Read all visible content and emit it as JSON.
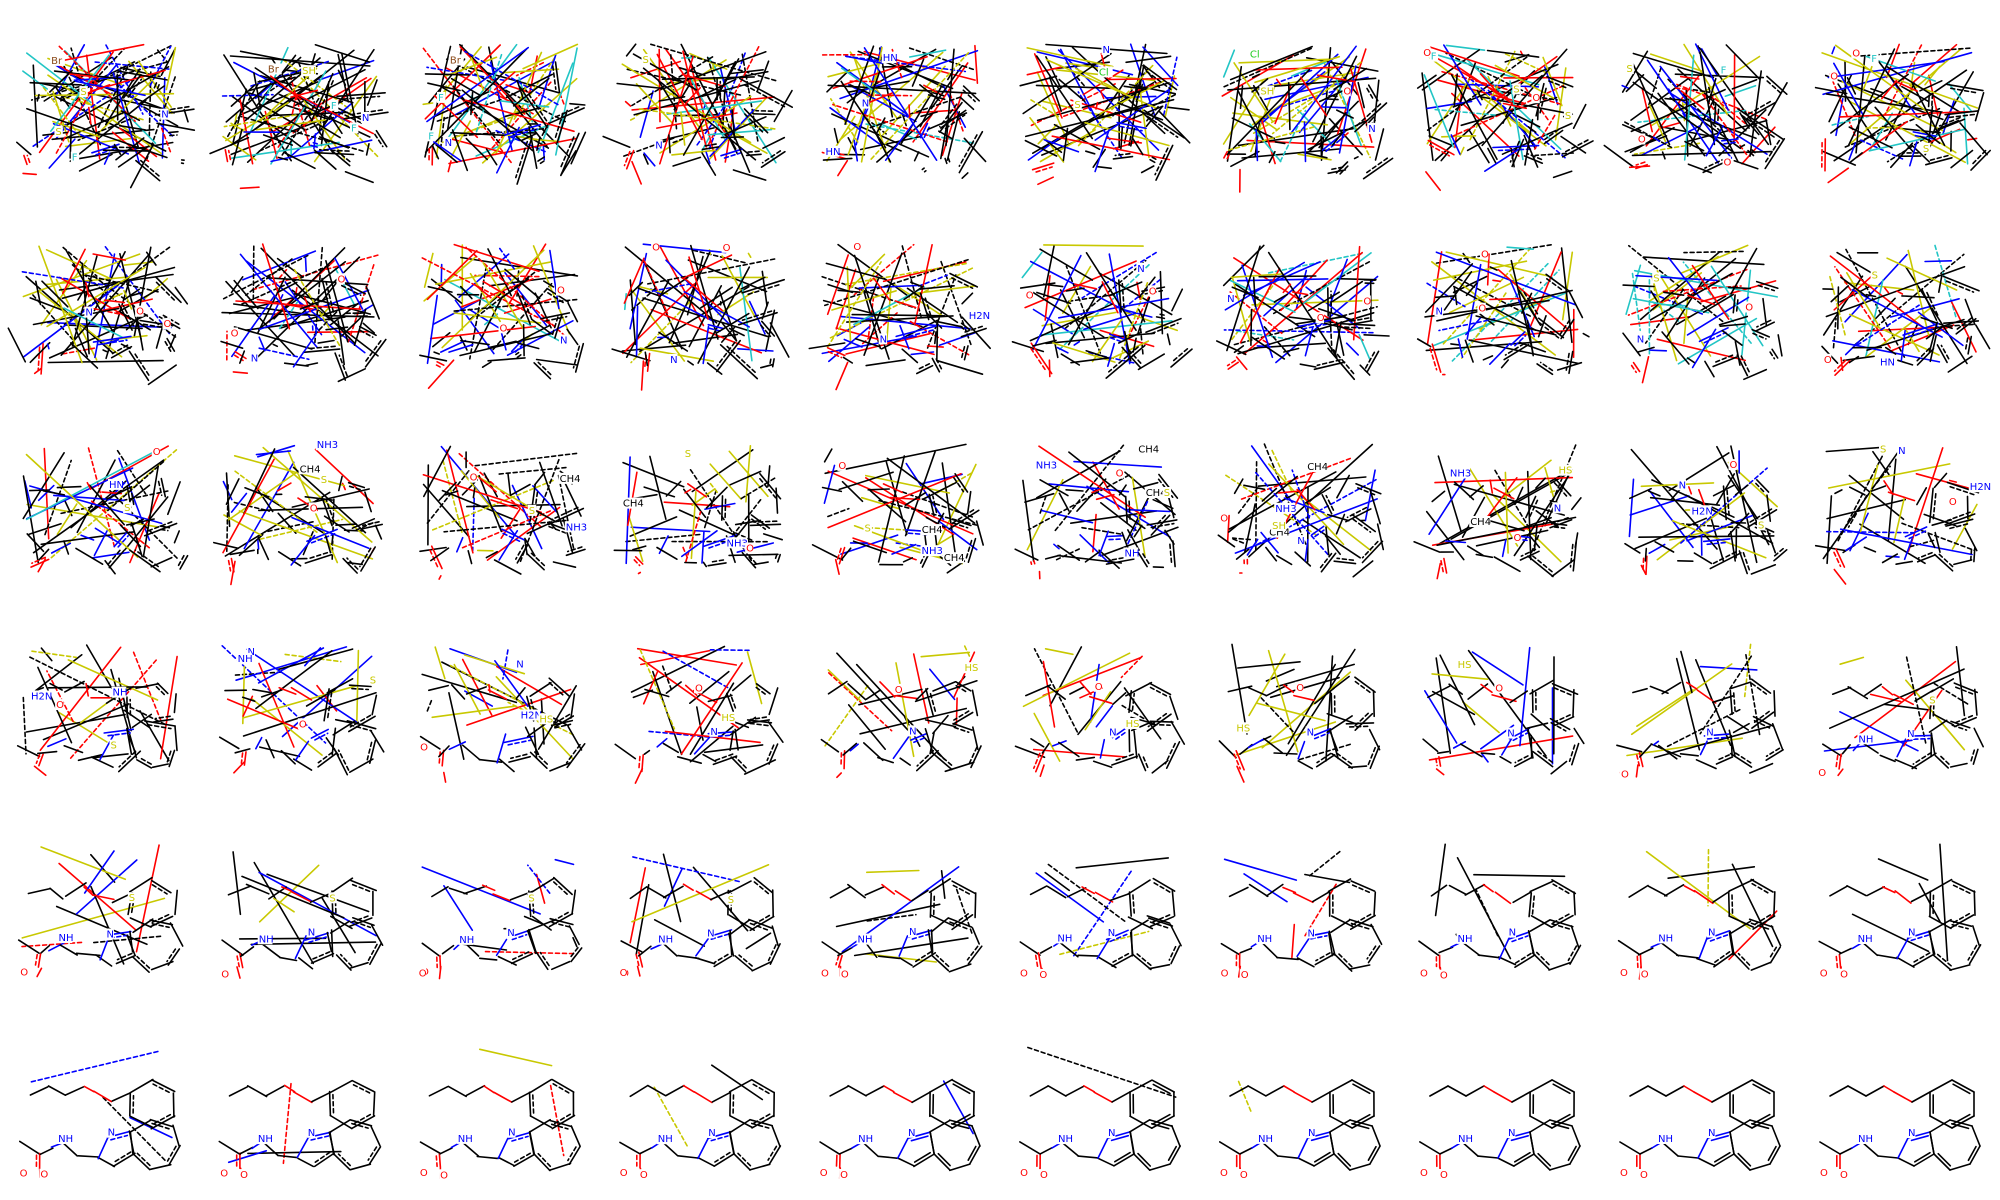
{
  "colors": {
    "C": "#000000",
    "N": "#0000ff",
    "O": "#ff0000",
    "S": "#c8c800",
    "F": "#22c5c5",
    "Cl": "#1fcc1f",
    "Br": "#8b4a1a"
  },
  "grid": {
    "rows": 6,
    "cols": 10
  },
  "panels": [
    {
      "labels": [
        {
          "t": "Br",
          "e": "Br"
        },
        {
          "t": "F",
          "e": "F"
        },
        {
          "t": "S",
          "e": "S"
        },
        {
          "t": "S",
          "e": "S"
        },
        {
          "t": "N",
          "e": "N"
        }
      ]
    },
    {
      "labels": [
        {
          "t": "F",
          "e": "F"
        },
        {
          "t": "Br",
          "e": "Br"
        },
        {
          "t": "F",
          "e": "F"
        },
        {
          "t": "SH",
          "e": "S"
        },
        {
          "t": "N",
          "e": "N"
        }
      ]
    },
    {
      "labels": [
        {
          "t": "Br",
          "e": "Br"
        },
        {
          "t": "F",
          "e": "F"
        },
        {
          "t": "F",
          "e": "F"
        },
        {
          "t": "N",
          "e": "N"
        }
      ]
    },
    {
      "labels": [
        {
          "t": "S",
          "e": "S"
        },
        {
          "t": "N",
          "e": "N"
        }
      ]
    },
    {
      "labels": [
        {
          "t": "HN",
          "e": "N"
        },
        {
          "t": "HN",
          "e": "N"
        },
        {
          "t": "N",
          "e": "N"
        }
      ]
    },
    {
      "labels": [
        {
          "t": "Cl",
          "e": "Cl"
        },
        {
          "t": "S",
          "e": "S"
        },
        {
          "t": "N",
          "e": "N"
        }
      ]
    },
    {
      "labels": [
        {
          "t": "O",
          "e": "O"
        },
        {
          "t": "Cl",
          "e": "Cl"
        },
        {
          "t": "N",
          "e": "N"
        },
        {
          "t": "SH",
          "e": "S"
        }
      ]
    },
    {
      "labels": [
        {
          "t": "O",
          "e": "O"
        },
        {
          "t": "S",
          "e": "S"
        },
        {
          "t": "F",
          "e": "F"
        },
        {
          "t": "O",
          "e": "O"
        },
        {
          "t": "S",
          "e": "S"
        }
      ]
    },
    {
      "labels": [
        {
          "t": "O",
          "e": "O"
        },
        {
          "t": "F",
          "e": "F"
        },
        {
          "t": "O",
          "e": "O"
        },
        {
          "t": "S",
          "e": "S"
        }
      ]
    },
    {
      "labels": [
        {
          "t": "O",
          "e": "O"
        },
        {
          "t": "F",
          "e": "F"
        },
        {
          "t": "O",
          "e": "O"
        },
        {
          "t": "S",
          "e": "S"
        }
      ]
    },
    {
      "labels": [
        {
          "t": "O",
          "e": "O"
        },
        {
          "t": "N",
          "e": "N"
        },
        {
          "t": "O",
          "e": "O"
        }
      ]
    },
    {
      "labels": [
        {
          "t": "O",
          "e": "O"
        },
        {
          "t": "N",
          "e": "N"
        },
        {
          "t": "O",
          "e": "O"
        }
      ]
    },
    {
      "labels": [
        {
          "t": "O",
          "e": "O"
        },
        {
          "t": "N",
          "e": "N"
        },
        {
          "t": "O",
          "e": "O"
        }
      ]
    },
    {
      "labels": [
        {
          "t": "O",
          "e": "O"
        },
        {
          "t": "N",
          "e": "N"
        },
        {
          "t": "O",
          "e": "O"
        }
      ]
    },
    {
      "labels": [
        {
          "t": "H2N",
          "e": "N"
        },
        {
          "t": "N",
          "e": "N"
        },
        {
          "t": "O",
          "e": "O"
        }
      ]
    },
    {
      "labels": [
        {
          "t": "O",
          "e": "O"
        },
        {
          "t": "N",
          "e": "N"
        },
        {
          "t": "O",
          "e": "O"
        }
      ]
    },
    {
      "labels": [
        {
          "t": "O",
          "e": "O"
        },
        {
          "t": "N",
          "e": "N"
        },
        {
          "t": "O",
          "e": "O"
        }
      ]
    },
    {
      "labels": [
        {
          "t": "O",
          "e": "O"
        },
        {
          "t": "N",
          "e": "N"
        },
        {
          "t": "O",
          "e": "O"
        }
      ]
    },
    {
      "labels": [
        {
          "t": "N",
          "e": "N"
        },
        {
          "t": "S",
          "e": "S"
        },
        {
          "t": "O",
          "e": "O"
        }
      ]
    },
    {
      "labels": [
        {
          "t": "HN",
          "e": "N"
        },
        {
          "t": "S",
          "e": "S"
        },
        {
          "t": "O",
          "e": "O"
        }
      ]
    },
    {
      "labels": [
        {
          "t": "HN",
          "e": "N"
        },
        {
          "t": "S",
          "e": "S"
        },
        {
          "t": "O",
          "e": "O"
        }
      ]
    },
    {
      "labels": [
        {
          "t": "NH3",
          "e": "N"
        },
        {
          "t": "CH4",
          "e": "C"
        },
        {
          "t": "S",
          "e": "S"
        },
        {
          "t": "O",
          "e": "O"
        }
      ]
    },
    {
      "labels": [
        {
          "t": "NH3",
          "e": "N"
        },
        {
          "t": "CH4",
          "e": "C"
        },
        {
          "t": "S",
          "e": "S"
        },
        {
          "t": "O",
          "e": "O"
        }
      ]
    },
    {
      "labels": [
        {
          "t": "NH3",
          "e": "N"
        },
        {
          "t": "CH4",
          "e": "C"
        },
        {
          "t": "S",
          "e": "S"
        },
        {
          "t": "O",
          "e": "O"
        }
      ]
    },
    {
      "labels": [
        {
          "t": "NH3",
          "e": "N"
        },
        {
          "t": "CH4",
          "e": "C"
        },
        {
          "t": "S",
          "e": "S"
        },
        {
          "t": "O",
          "e": "O"
        },
        {
          "t": "CH4",
          "e": "C"
        }
      ]
    },
    {
      "labels": [
        {
          "t": "NH3",
          "e": "N"
        },
        {
          "t": "CH4",
          "e": "C"
        },
        {
          "t": "NH",
          "e": "N"
        },
        {
          "t": "S",
          "e": "S"
        },
        {
          "t": "O",
          "e": "O"
        },
        {
          "t": "CH4",
          "e": "C"
        }
      ]
    },
    {
      "labels": [
        {
          "t": "NH3",
          "e": "N"
        },
        {
          "t": "CH4",
          "e": "C"
        },
        {
          "t": "N",
          "e": "N"
        },
        {
          "t": "SH",
          "e": "S"
        },
        {
          "t": "O",
          "e": "O"
        },
        {
          "t": "CH4",
          "e": "C"
        }
      ]
    },
    {
      "labels": [
        {
          "t": "NH3",
          "e": "N"
        },
        {
          "t": "CH4",
          "e": "C"
        },
        {
          "t": "N",
          "e": "N"
        },
        {
          "t": "HS",
          "e": "S"
        },
        {
          "t": "O",
          "e": "O"
        }
      ]
    },
    {
      "labels": [
        {
          "t": "H2N",
          "e": "N"
        },
        {
          "t": "N",
          "e": "N"
        },
        {
          "t": "S",
          "e": "S"
        },
        {
          "t": "O",
          "e": "O"
        }
      ]
    },
    {
      "labels": [
        {
          "t": "H2N",
          "e": "N"
        },
        {
          "t": "N",
          "e": "N"
        },
        {
          "t": "S",
          "e": "S"
        },
        {
          "t": "O",
          "e": "O"
        }
      ]
    },
    {
      "labels": [
        {
          "t": "H2N",
          "e": "N"
        },
        {
          "t": "NH",
          "e": "N"
        },
        {
          "t": "S",
          "e": "S"
        },
        {
          "t": "O",
          "e": "O"
        }
      ]
    },
    {
      "labels": [
        {
          "t": "N",
          "e": "N"
        },
        {
          "t": "NH",
          "e": "N"
        },
        {
          "t": "S",
          "e": "S"
        },
        {
          "t": "O",
          "e": "O"
        }
      ]
    },
    {
      "labels": [
        {
          "t": "H2N",
          "e": "N"
        },
        {
          "t": "O",
          "e": "O"
        },
        {
          "t": "HS",
          "e": "S"
        },
        {
          "t": "N",
          "e": "N"
        }
      ]
    },
    {
      "labels": [
        {
          "t": "HS",
          "e": "S"
        },
        {
          "t": "O",
          "e": "O"
        },
        {
          "t": "N",
          "e": "N"
        }
      ]
    },
    {
      "labels": [
        {
          "t": "HS",
          "e": "S"
        },
        {
          "t": "O",
          "e": "O"
        },
        {
          "t": "N",
          "e": "N"
        }
      ]
    },
    {
      "labels": [
        {
          "t": "HS",
          "e": "S"
        },
        {
          "t": "O",
          "e": "O"
        },
        {
          "t": "N",
          "e": "N"
        }
      ]
    },
    {
      "labels": [
        {
          "t": "HS",
          "e": "S"
        },
        {
          "t": "O",
          "e": "O"
        },
        {
          "t": "N",
          "e": "N"
        }
      ]
    },
    {
      "labels": [
        {
          "t": "HS",
          "e": "S"
        },
        {
          "t": "O",
          "e": "O"
        },
        {
          "t": "N",
          "e": "N"
        }
      ]
    },
    {
      "labels": [
        {
          "t": "O",
          "e": "O"
        },
        {
          "t": "N",
          "e": "N"
        },
        {
          "t": "O",
          "e": "O"
        }
      ]
    },
    {
      "labels": [
        {
          "t": "O",
          "e": "O"
        },
        {
          "t": "NH",
          "e": "N"
        },
        {
          "t": "O",
          "e": "O"
        },
        {
          "t": "N",
          "e": "N"
        },
        {
          "t": "S",
          "e": "S"
        }
      ]
    },
    {
      "labels": [
        {
          "t": "O",
          "e": "O"
        },
        {
          "t": "S",
          "e": "S"
        },
        {
          "t": "NH",
          "e": "N"
        },
        {
          "t": "N",
          "e": "N"
        },
        {
          "t": "O",
          "e": "O"
        }
      ]
    },
    {
      "labels": [
        {
          "t": "O",
          "e": "O"
        },
        {
          "t": "S",
          "e": "S"
        },
        {
          "t": "NH",
          "e": "N"
        },
        {
          "t": "N",
          "e": "N"
        },
        {
          "t": "O",
          "e": "O"
        }
      ]
    },
    {
      "labels": [
        {
          "t": "O",
          "e": "O"
        },
        {
          "t": "S",
          "e": "S"
        },
        {
          "t": "NH",
          "e": "N"
        },
        {
          "t": "N",
          "e": "N"
        },
        {
          "t": "O",
          "e": "O"
        }
      ]
    },
    {
      "labels": [
        {
          "t": "O",
          "e": "O"
        },
        {
          "t": "S",
          "e": "S"
        },
        {
          "t": "NH",
          "e": "N"
        },
        {
          "t": "N",
          "e": "N"
        },
        {
          "t": "O",
          "e": "O"
        }
      ]
    },
    {
      "labels": [
        {
          "t": "O",
          "e": "O"
        },
        {
          "t": "NH",
          "e": "N"
        },
        {
          "t": "N",
          "e": "N"
        },
        {
          "t": "O",
          "e": "O"
        }
      ]
    },
    {
      "labels": [
        {
          "t": "O",
          "e": "O"
        },
        {
          "t": "NH",
          "e": "N"
        },
        {
          "t": "N",
          "e": "N"
        },
        {
          "t": "O",
          "e": "O"
        }
      ]
    },
    {
      "labels": [
        {
          "t": "O",
          "e": "O"
        },
        {
          "t": "NH",
          "e": "N"
        },
        {
          "t": "N",
          "e": "N"
        },
        {
          "t": "O",
          "e": "O"
        }
      ]
    },
    {
      "labels": [
        {
          "t": "O",
          "e": "O"
        },
        {
          "t": "NH",
          "e": "N"
        },
        {
          "t": "N",
          "e": "N"
        },
        {
          "t": "O",
          "e": "O"
        }
      ]
    },
    {
      "labels": [
        {
          "t": "O",
          "e": "O"
        },
        {
          "t": "NH",
          "e": "N"
        },
        {
          "t": "N",
          "e": "N"
        },
        {
          "t": "O",
          "e": "O"
        }
      ]
    },
    {
      "labels": [
        {
          "t": "O",
          "e": "O"
        },
        {
          "t": "NH",
          "e": "N"
        },
        {
          "t": "N",
          "e": "N"
        },
        {
          "t": "O",
          "e": "O"
        }
      ]
    },
    {
      "labels": [
        {
          "t": "O",
          "e": "O"
        },
        {
          "t": "NH",
          "e": "N"
        },
        {
          "t": "N",
          "e": "N"
        },
        {
          "t": "O",
          "e": "O"
        }
      ]
    },
    {
      "labels": [
        {
          "t": "O",
          "e": "O"
        },
        {
          "t": "NH",
          "e": "N"
        },
        {
          "t": "N",
          "e": "N"
        },
        {
          "t": "O",
          "e": "O"
        }
      ]
    },
    {
      "labels": [
        {
          "t": "O",
          "e": "O"
        },
        {
          "t": "NH",
          "e": "N"
        },
        {
          "t": "N",
          "e": "N"
        },
        {
          "t": "O",
          "e": "O"
        }
      ]
    },
    {
      "labels": [
        {
          "t": "O",
          "e": "O"
        },
        {
          "t": "NH",
          "e": "N"
        },
        {
          "t": "N",
          "e": "N"
        },
        {
          "t": "O",
          "e": "O"
        }
      ]
    },
    {
      "labels": [
        {
          "t": "O",
          "e": "O"
        },
        {
          "t": "NH",
          "e": "N"
        },
        {
          "t": "N",
          "e": "N"
        },
        {
          "t": "O",
          "e": "O"
        }
      ]
    },
    {
      "labels": [
        {
          "t": "O",
          "e": "O"
        },
        {
          "t": "NH",
          "e": "N"
        },
        {
          "t": "N",
          "e": "N"
        },
        {
          "t": "O",
          "e": "O"
        }
      ]
    },
    {
      "labels": [
        {
          "t": "O",
          "e": "O"
        },
        {
          "t": "NH",
          "e": "N"
        },
        {
          "t": "N",
          "e": "N"
        },
        {
          "t": "O",
          "e": "O"
        }
      ]
    },
    {
      "labels": [
        {
          "t": "O",
          "e": "O"
        },
        {
          "t": "NH",
          "e": "N"
        },
        {
          "t": "N",
          "e": "N"
        },
        {
          "t": "O",
          "e": "O"
        }
      ]
    },
    {
      "labels": [
        {
          "t": "O",
          "e": "O"
        },
        {
          "t": "NH",
          "e": "N"
        },
        {
          "t": "N",
          "e": "N"
        },
        {
          "t": "O",
          "e": "O"
        }
      ]
    },
    {
      "labels": [
        {
          "t": "O",
          "e": "O"
        },
        {
          "t": "NH",
          "e": "N"
        },
        {
          "t": "N",
          "e": "N"
        },
        {
          "t": "O",
          "e": "O"
        }
      ]
    }
  ]
}
